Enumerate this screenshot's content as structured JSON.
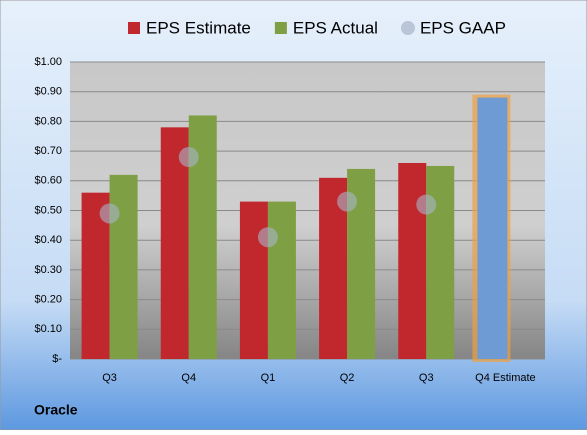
{
  "chart_data": {
    "type": "bar",
    "title": "Oracle",
    "categories": [
      "Q3",
      "Q4",
      "Q1",
      "Q2",
      "Q3",
      "Q4 Estimate"
    ],
    "series": [
      {
        "name": "EPS Estimate",
        "color": "#c0282d",
        "values": [
          0.56,
          0.78,
          0.53,
          0.61,
          0.66,
          null
        ]
      },
      {
        "name": "EPS Actual",
        "color": "#7f9f45",
        "values": [
          0.62,
          0.82,
          0.53,
          0.64,
          0.65,
          null
        ]
      },
      {
        "name": "EPS GAAP",
        "color": "#a8b4c8",
        "values": [
          0.49,
          0.68,
          0.41,
          0.53,
          0.52,
          null
        ]
      },
      {
        "color": "#6f9bd4",
        "values": [
          null,
          null,
          null,
          null,
          null,
          0.88
        ]
      }
    ],
    "ylim": [
      0,
      1
    ],
    "yticks": [
      {
        "value": 0,
        "label": "$-"
      },
      {
        "value": 0.1,
        "label": "$0.10"
      },
      {
        "value": 0.2,
        "label": "$0.20"
      },
      {
        "value": 0.3,
        "label": "$0.30"
      },
      {
        "value": 0.4,
        "label": "$0.40"
      },
      {
        "value": 0.5,
        "label": "$0.50"
      },
      {
        "value": 0.6,
        "label": "$0.60"
      },
      {
        "value": 0.7,
        "label": "$0.70"
      },
      {
        "value": 0.8,
        "label": "$0.80"
      },
      {
        "value": 0.9,
        "label": "$0.90"
      },
      {
        "value": 1,
        "label": "$1.00"
      }
    ],
    "grid": true
  }
}
